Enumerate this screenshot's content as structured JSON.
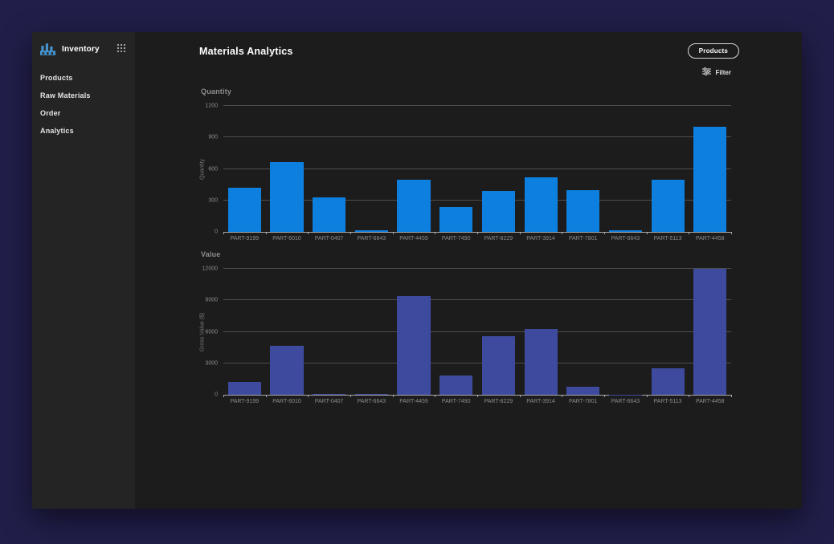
{
  "sidebar": {
    "app_title": "Inventory",
    "items": [
      {
        "label": "Products"
      },
      {
        "label": "Raw Materials"
      },
      {
        "label": "Order"
      },
      {
        "label": "Analytics"
      }
    ]
  },
  "header": {
    "title": "Materials Analytics",
    "products_button": "Products",
    "filter_label": "Filter"
  },
  "colors": {
    "quantity_bar": "#0d7fdf",
    "value_bar": "#3e4a9e",
    "window_bg": "#1c1c1c",
    "sidebar_bg": "#242424",
    "logo_blue": "#4593cc"
  },
  "chart_data": [
    {
      "type": "bar",
      "title": "Quantity",
      "ylabel": "Quantity",
      "xlabel": "",
      "categories": [
        "PART-9199",
        "PART-6010",
        "PART-0407",
        "PART-6643",
        "PART-4459",
        "PART-7490",
        "PART-8229",
        "PART-3914",
        "PART-7801",
        "PART-6643",
        "PART-5113",
        "PART-4458"
      ],
      "values": [
        420,
        665,
        330,
        15,
        500,
        240,
        390,
        520,
        400,
        15,
        500,
        1000
      ],
      "ylim": [
        0,
        1200
      ],
      "yticks": [
        0,
        300,
        600,
        900,
        1200
      ],
      "grid": true,
      "legend": false,
      "bar_color": "#0d7fdf"
    },
    {
      "type": "bar",
      "title": "Value",
      "ylabel": "Gross Value ($)",
      "xlabel": "",
      "categories": [
        "PART-9199",
        "PART-6010",
        "PART-0407",
        "PART-6643",
        "PART-4459",
        "PART-7490",
        "PART-8229",
        "PART-3914",
        "PART-7801",
        "PART-6643",
        "PART-5113",
        "PART-4458"
      ],
      "values": [
        1200,
        4700,
        60,
        100,
        9400,
        1800,
        5600,
        6300,
        800,
        30,
        2500,
        12000
      ],
      "ylim": [
        0,
        12000
      ],
      "yticks": [
        0,
        3000,
        6000,
        9000,
        12000
      ],
      "grid": true,
      "legend": false,
      "bar_color": "#3e4a9e"
    }
  ]
}
